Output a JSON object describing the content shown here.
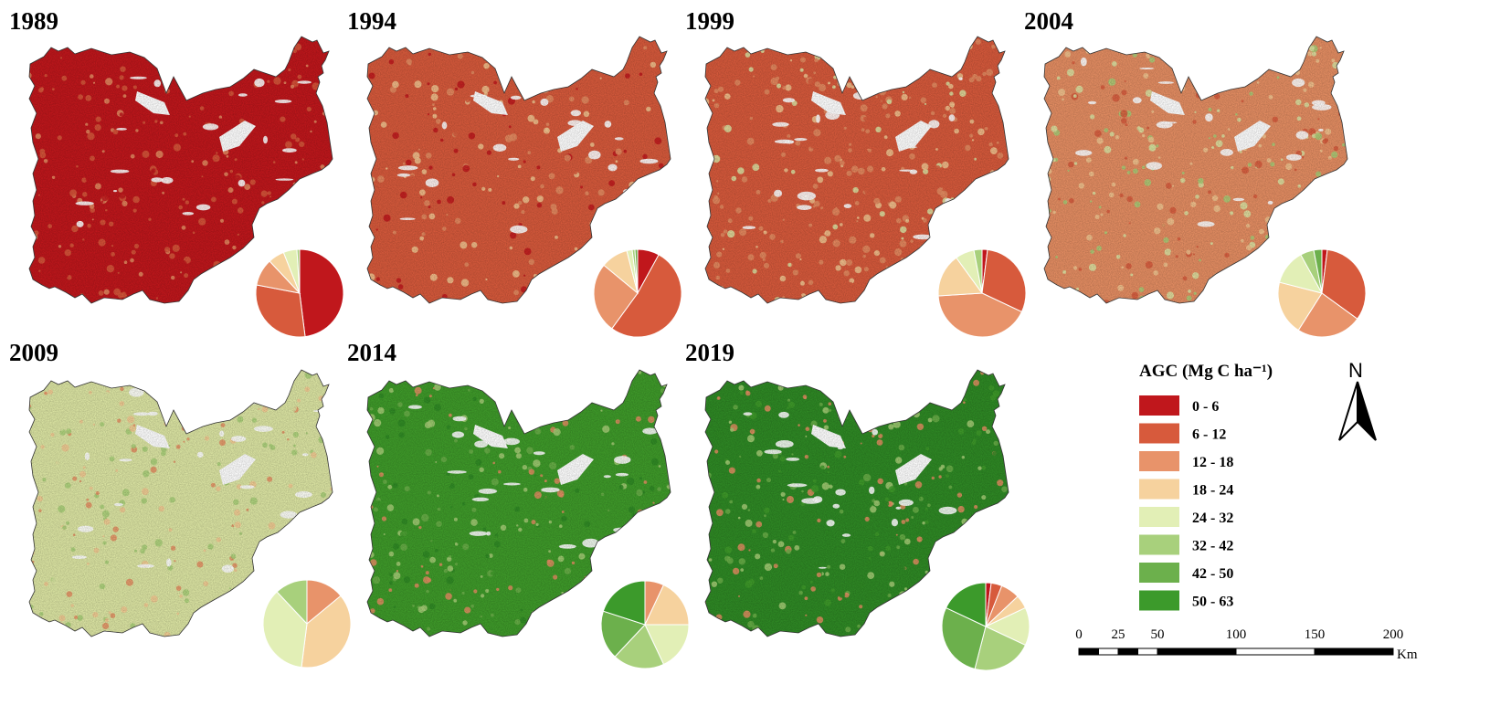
{
  "panels": [
    {
      "year": "1989",
      "class_colors": [
        "#c0171c",
        "#c0171c",
        "#c0171c",
        "#d75a3c",
        "#d75a3c",
        "#e58e63"
      ],
      "pie": [
        48,
        30,
        10,
        6,
        5,
        1,
        0,
        0
      ]
    },
    {
      "year": "1994",
      "class_colors": [
        "#d75a3c",
        "#d75a3c",
        "#c0171c",
        "#e58e63",
        "#d75a3c",
        "#f3c892"
      ],
      "pie": [
        8,
        52,
        26,
        10,
        2,
        1,
        1,
        0
      ]
    },
    {
      "year": "1999",
      "class_colors": [
        "#d75a3c",
        "#e58e63",
        "#e58e63",
        "#f3c892",
        "#d75a3c",
        "#dde6a4"
      ],
      "pie": [
        2,
        30,
        42,
        16,
        7,
        3,
        0,
        0
      ]
    },
    {
      "year": "2004",
      "class_colors": [
        "#e58e63",
        "#d75a3c",
        "#f3c892",
        "#dde6a4",
        "#e58e63",
        "#a8cf78"
      ],
      "pie": [
        2,
        33,
        24,
        20,
        13,
        5,
        3,
        0
      ]
    },
    {
      "year": "2009",
      "class_colors": [
        "#dde6a4",
        "#f3c892",
        "#dde6a4",
        "#a8cf78",
        "#e58e63",
        "#dde6a4"
      ],
      "pie": [
        0,
        0,
        14,
        38,
        36,
        12,
        0,
        0
      ]
    },
    {
      "year": "2014",
      "class_colors": [
        "#3f9b2a",
        "#6cb04a",
        "#3f9b2a",
        "#a8cf78",
        "#e58e63",
        "#2f8a25"
      ],
      "pie": [
        0,
        0,
        7,
        18,
        18,
        19,
        18,
        20
      ]
    },
    {
      "year": "2019",
      "class_colors": [
        "#2f8a25",
        "#3f9b2a",
        "#6cb04a",
        "#2f8a25",
        "#e58e63",
        "#a8cf78"
      ],
      "pie": [
        2,
        4,
        7,
        5,
        14,
        22,
        28,
        18
      ]
    }
  ],
  "legend": {
    "title": "AGC (Mg C ha⁻¹)",
    "classes": [
      {
        "label": "0 - 6",
        "color": "#c0171c"
      },
      {
        "label": "6 - 12",
        "color": "#d75a3c"
      },
      {
        "label": "12 - 18",
        "color": "#e8936a"
      },
      {
        "label": "18 - 24",
        "color": "#f6d29e"
      },
      {
        "label": "24 - 32",
        "color": "#e2efb6"
      },
      {
        "label": "32 - 42",
        "color": "#a8d07c"
      },
      {
        "label": "42 - 50",
        "color": "#6cb04c"
      },
      {
        "label": "50 - 63",
        "color": "#3c9a2b"
      }
    ]
  },
  "north_arrow": {
    "label": "N"
  },
  "scale_bar": {
    "ticks": [
      "0",
      "25",
      "50",
      "100",
      "150",
      "200"
    ],
    "unit": "Km"
  }
}
